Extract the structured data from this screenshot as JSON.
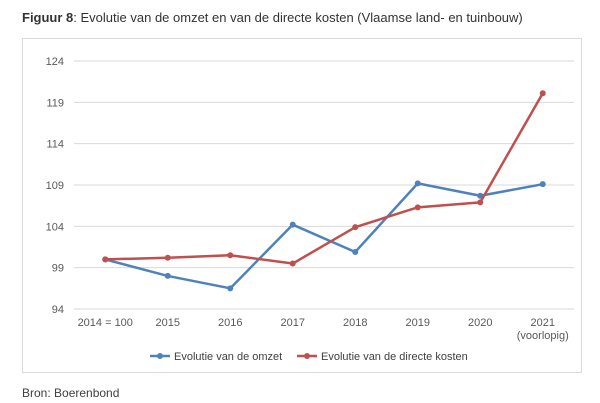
{
  "title": {
    "figure_label": "Figuur 8",
    "text": ": Evolutie van de omzet en van de directe kosten (Vlaamse land- en tuinbouw)"
  },
  "source": "Bron: Boerenbond",
  "chart_data": {
    "type": "line",
    "categories": [
      "2014 = 100",
      "2015",
      "2016",
      "2017",
      "2018",
      "2019",
      "2020",
      "2021"
    ],
    "category_sublabels": [
      "",
      "",
      "",
      "",
      "",
      "",
      "",
      "(voorlopig)"
    ],
    "yticks": [
      94,
      99,
      104,
      109,
      114,
      119,
      124
    ],
    "ylim": [
      94,
      124
    ],
    "grid": true,
    "legend_position": "bottom",
    "series": [
      {
        "name": "Evolutie van de omzet",
        "color": "#4f81bd",
        "values": [
          100,
          98,
          96.5,
          104.2,
          100.9,
          109.2,
          107.7,
          109.1
        ]
      },
      {
        "name": "Evolutie van de directe kosten",
        "color": "#c0504d",
        "values": [
          100,
          100.2,
          100.5,
          99.5,
          103.9,
          106.3,
          106.9,
          120.1
        ]
      }
    ]
  }
}
